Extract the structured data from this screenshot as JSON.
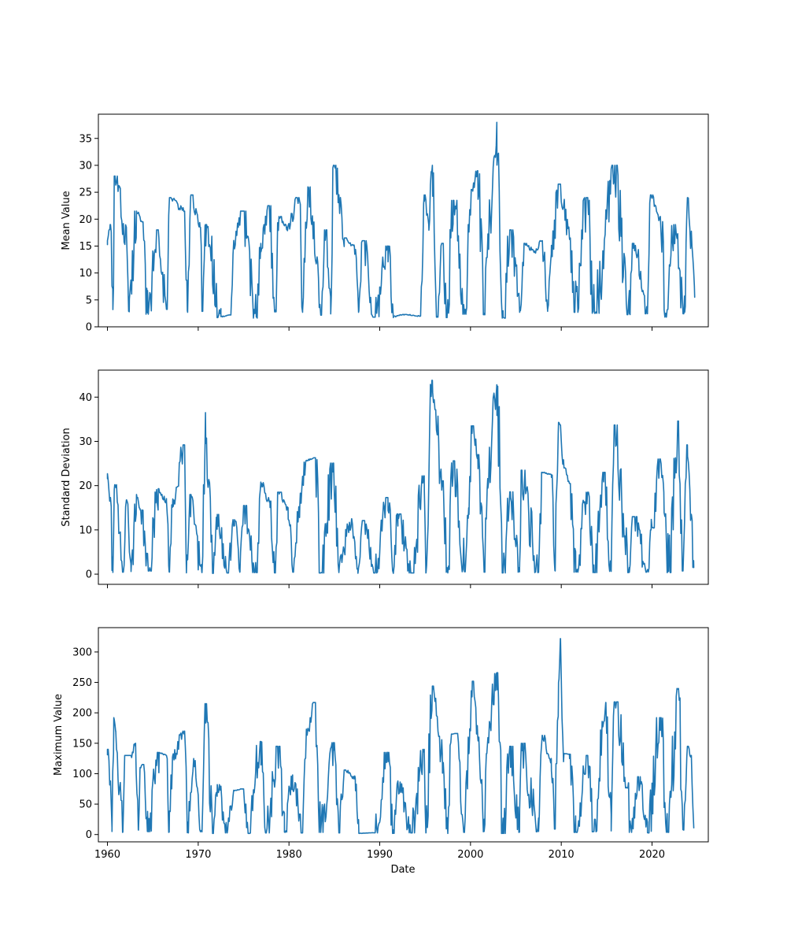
{
  "chart_data": [
    {
      "type": "line",
      "xlabel": "",
      "ylabel": "Mean Value",
      "xlim": [
        1959.0,
        2026.2
      ],
      "ylim": [
        0,
        39.5
      ],
      "yticks": [
        0,
        5,
        10,
        15,
        20,
        25,
        30,
        35
      ],
      "xticks": [
        1960,
        1970,
        1980,
        1990,
        2000,
        2010,
        2020
      ],
      "xtick_labels_visible": false,
      "color": "#1f77b4",
      "peaks": [
        [
          1960.0,
          16
        ],
        [
          1960.3,
          19
        ],
        [
          1960.8,
          28
        ],
        [
          1962.1,
          17
        ],
        [
          1963.2,
          21.5
        ],
        [
          1963.8,
          19.5
        ],
        [
          1965.6,
          18
        ],
        [
          1966.9,
          24
        ],
        [
          1968.5,
          21.5
        ],
        [
          1969.2,
          24.5
        ],
        [
          1970.2,
          18.5
        ],
        [
          1970.8,
          19
        ],
        [
          1973.9,
          15.5
        ],
        [
          1974.9,
          21.5
        ],
        [
          1976.9,
          15.5
        ],
        [
          1977.8,
          22.5
        ],
        [
          1978.9,
          20.5
        ],
        [
          1979.8,
          18.5
        ],
        [
          1981.1,
          24
        ],
        [
          1982.1,
          26
        ],
        [
          1983.1,
          13
        ],
        [
          1984.1,
          18
        ],
        [
          1984.9,
          30
        ],
        [
          1986.1,
          16.5
        ],
        [
          1987.2,
          15
        ],
        [
          1988.1,
          16
        ],
        [
          1990.9,
          15
        ],
        [
          1994.9,
          24.5
        ],
        [
          1995.4,
          19
        ],
        [
          1995.8,
          30
        ],
        [
          1996.9,
          15.5
        ],
        [
          1998.1,
          23.5
        ],
        [
          1999.8,
          19
        ],
        [
          2000.2,
          25.5
        ],
        [
          2000.8,
          29
        ],
        [
          2001.9,
          16
        ],
        [
          2002.9,
          38
        ],
        [
          2004.4,
          18
        ],
        [
          2005.9,
          15.5
        ],
        [
          2007.1,
          14
        ],
        [
          2007.9,
          16
        ],
        [
          2008.9,
          13.5
        ],
        [
          2009.8,
          26.5
        ],
        [
          2010.9,
          16.5
        ],
        [
          2012.9,
          24
        ],
        [
          2015.9,
          30
        ],
        [
          2017.9,
          15.5
        ],
        [
          2019.9,
          24.5
        ],
        [
          2020.9,
          20.5
        ],
        [
          2022.4,
          19
        ],
        [
          2023.9,
          24
        ],
        [
          2024.4,
          15
        ]
      ],
      "troughs": [
        [
          1960.6,
          3.2
        ],
        [
          1962.4,
          2.8
        ],
        [
          1964.4,
          2.6
        ],
        [
          1966.5,
          3.6
        ],
        [
          1968.8,
          3.0
        ],
        [
          1970.5,
          3.2
        ],
        [
          1972.5,
          1.9
        ],
        [
          1973.6,
          2.2
        ],
        [
          1976.4,
          1.8
        ],
        [
          1978.5,
          3.1
        ],
        [
          1981.5,
          3.0
        ],
        [
          1983.5,
          2.4
        ],
        [
          1984.6,
          2.4
        ],
        [
          1987.7,
          3.0
        ],
        [
          1989.5,
          2.0
        ],
        [
          1991.5,
          1.9
        ],
        [
          1992.7,
          2.3
        ],
        [
          1994.5,
          2.0
        ],
        [
          1996.4,
          2.0
        ],
        [
          1997.4,
          1.9
        ],
        [
          1999.5,
          2.6
        ],
        [
          2001.5,
          2.5
        ],
        [
          2003.6,
          1.8
        ],
        [
          2005.5,
          3.0
        ],
        [
          2008.5,
          3.2
        ],
        [
          2011.5,
          3.0
        ],
        [
          2013.5,
          2.8
        ],
        [
          2017.5,
          2.5
        ],
        [
          2019.5,
          2.7
        ],
        [
          2021.6,
          2.0
        ],
        [
          2023.6,
          2.7
        ],
        [
          2024.7,
          5.5
        ]
      ],
      "end_value": 5.5
    },
    {
      "type": "line",
      "xlabel": "",
      "ylabel": "Standard Deviation",
      "xlim": [
        1959.0,
        2026.2
      ],
      "ylim": [
        -2.3,
        46.1
      ],
      "yticks": [
        0,
        10,
        20,
        30,
        40
      ],
      "xticks": [
        1960,
        1970,
        1980,
        1990,
        2000,
        2010,
        2020
      ],
      "xtick_labels_visible": false,
      "color": "#1f77b4",
      "peaks": [
        [
          1960.0,
          22.7
        ],
        [
          1960.3,
          17.3
        ],
        [
          1960.8,
          20.2
        ],
        [
          1962.1,
          16.8
        ],
        [
          1963.2,
          18.0
        ],
        [
          1963.6,
          14.5
        ],
        [
          1965.6,
          19.3
        ],
        [
          1966.5,
          16.5
        ],
        [
          1967.2,
          17.0
        ],
        [
          1968.5,
          29.2
        ],
        [
          1969.2,
          18.0
        ],
        [
          1970.8,
          36.5
        ],
        [
          1972.1,
          13.5
        ],
        [
          1974.0,
          12.3
        ],
        [
          1975.0,
          15.5
        ],
        [
          1976.9,
          20.8
        ],
        [
          1977.9,
          16.5
        ],
        [
          1978.9,
          18.5
        ],
        [
          1979.9,
          15.0
        ],
        [
          1981.2,
          16.0
        ],
        [
          1981.9,
          25.7
        ],
        [
          1982.9,
          26.3
        ],
        [
          1984.9,
          25.1
        ],
        [
          1986.9,
          12.5
        ],
        [
          1988.1,
          12.1
        ],
        [
          1990.9,
          17.3
        ],
        [
          1992.0,
          13.6
        ],
        [
          1994.9,
          22.2
        ],
        [
          1995.8,
          43.8
        ],
        [
          1996.9,
          21.1
        ],
        [
          1998.1,
          25.6
        ],
        [
          1999.8,
          15.0
        ],
        [
          2000.2,
          33.5
        ],
        [
          2000.8,
          27.0
        ],
        [
          2001.9,
          21.6
        ],
        [
          2002.9,
          42.8
        ],
        [
          2004.4,
          18.6
        ],
        [
          2005.6,
          23.5
        ],
        [
          2007.9,
          23.0
        ],
        [
          2008.9,
          22.5
        ],
        [
          2009.7,
          34.3
        ],
        [
          2009.9,
          33.7
        ],
        [
          2010.3,
          24.0
        ],
        [
          2010.9,
          20.5
        ],
        [
          2012.9,
          18.5
        ],
        [
          2014.7,
          23.0
        ],
        [
          2015.9,
          33.7
        ],
        [
          2017.9,
          13.0
        ],
        [
          2019.9,
          10.0
        ],
        [
          2020.9,
          26.0
        ],
        [
          2021.3,
          18.5
        ],
        [
          2022.9,
          34.6
        ],
        [
          2023.9,
          29.2
        ],
        [
          2024.3,
          13.5
        ]
      ],
      "troughs": [
        [
          1960.6,
          0.4
        ],
        [
          1961.7,
          0.5
        ],
        [
          1962.6,
          0.6
        ],
        [
          1964.5,
          0.8
        ],
        [
          1966.8,
          0.5
        ],
        [
          1968.7,
          0.3
        ],
        [
          1970.4,
          0.4
        ],
        [
          1971.6,
          0.2
        ],
        [
          1973.2,
          0.3
        ],
        [
          1974.6,
          0.5
        ],
        [
          1976.4,
          0.4
        ],
        [
          1978.4,
          0.3
        ],
        [
          1980.5,
          0.5
        ],
        [
          1983.5,
          0.3
        ],
        [
          1985.5,
          0.4
        ],
        [
          1987.6,
          0.2
        ],
        [
          1989.5,
          0.3
        ],
        [
          1991.5,
          0.2
        ],
        [
          1993.5,
          0.3
        ],
        [
          1995.1,
          0.3
        ],
        [
          1997.5,
          0.3
        ],
        [
          1999.4,
          0.6
        ],
        [
          2001.5,
          0.5
        ],
        [
          2003.6,
          0.3
        ],
        [
          2005.4,
          0.5
        ],
        [
          2007.5,
          0.4
        ],
        [
          2009.3,
          0.8
        ],
        [
          2011.6,
          0.5
        ],
        [
          2013.6,
          0.4
        ],
        [
          2015.5,
          0.7
        ],
        [
          2017.5,
          0.4
        ],
        [
          2019.6,
          0.5
        ],
        [
          2021.7,
          0.4
        ],
        [
          2023.4,
          0.8
        ],
        [
          2024.6,
          1.5
        ]
      ],
      "end_value": 1.5
    },
    {
      "type": "line",
      "xlabel": "Date",
      "ylabel": "Maximum Value",
      "xlim": [
        1959.0,
        2026.2
      ],
      "ylim": [
        -12,
        340
      ],
      "yticks": [
        0,
        50,
        100,
        150,
        200,
        250,
        300
      ],
      "xticks": [
        1960,
        1970,
        1980,
        1990,
        2000,
        2010,
        2020
      ],
      "xtick_labels_visible": true,
      "color": "#1f77b4",
      "peaks": [
        [
          1960.0,
          140
        ],
        [
          1960.3,
          88
        ],
        [
          1960.7,
          192
        ],
        [
          1960.9,
          170
        ],
        [
          1961.9,
          130
        ],
        [
          1962.6,
          130
        ],
        [
          1963.1,
          150
        ],
        [
          1963.6,
          110
        ],
        [
          1963.9,
          115
        ],
        [
          1965.7,
          135
        ],
        [
          1966.5,
          130
        ],
        [
          1967.2,
          130
        ],
        [
          1968.5,
          170
        ],
        [
          1969.5,
          125
        ],
        [
          1970.8,
          215
        ],
        [
          1972.1,
          82
        ],
        [
          1973.9,
          72
        ],
        [
          1974.9,
          75
        ],
        [
          1976.9,
          153
        ],
        [
          1978.9,
          145
        ],
        [
          1980.4,
          98
        ],
        [
          1981.9,
          163
        ],
        [
          1982.9,
          217
        ],
        [
          1984.9,
          151
        ],
        [
          1986.1,
          106
        ],
        [
          1987.3,
          93
        ],
        [
          1990.9,
          135
        ],
        [
          1992.0,
          88
        ],
        [
          1994.9,
          140
        ],
        [
          1995.8,
          244
        ],
        [
          1996.9,
          130
        ],
        [
          1997.9,
          165
        ],
        [
          1998.4,
          166
        ],
        [
          1999.9,
          160
        ],
        [
          2000.2,
          252
        ],
        [
          2000.8,
          160
        ],
        [
          2001.8,
          133
        ],
        [
          2002.9,
          266
        ],
        [
          2004.4,
          145
        ],
        [
          2005.6,
          150
        ],
        [
          2007.9,
          163
        ],
        [
          2008.9,
          125
        ],
        [
          2009.7,
          250
        ],
        [
          2009.9,
          322
        ],
        [
          2010.3,
          133
        ],
        [
          2010.9,
          132
        ],
        [
          2012.9,
          130
        ],
        [
          2014.7,
          186
        ],
        [
          2014.9,
          217
        ],
        [
          2015.9,
          218
        ],
        [
          2017.4,
          85
        ],
        [
          2018.7,
          95
        ],
        [
          2020.9,
          192
        ],
        [
          2022.9,
          240
        ],
        [
          2023.9,
          145
        ],
        [
          2024.3,
          130
        ]
      ],
      "troughs": [
        [
          1960.5,
          5
        ],
        [
          1961.7,
          4
        ],
        [
          1963.4,
          8
        ],
        [
          1964.4,
          5
        ],
        [
          1966.8,
          4
        ],
        [
          1968.8,
          3
        ],
        [
          1970.4,
          5
        ],
        [
          1971.6,
          2
        ],
        [
          1973.2,
          3
        ],
        [
          1975.6,
          2
        ],
        [
          1977.5,
          3
        ],
        [
          1979.5,
          4
        ],
        [
          1981.5,
          3
        ],
        [
          1983.5,
          4
        ],
        [
          1985.5,
          3
        ],
        [
          1987.7,
          2
        ],
        [
          1989.5,
          3
        ],
        [
          1991.5,
          2
        ],
        [
          1993.5,
          3
        ],
        [
          1995.1,
          3
        ],
        [
          1997.5,
          2
        ],
        [
          1999.3,
          4
        ],
        [
          2001.5,
          5
        ],
        [
          2003.6,
          2
        ],
        [
          2005.4,
          4
        ],
        [
          2007.5,
          5
        ],
        [
          2009.3,
          10
        ],
        [
          2011.6,
          4
        ],
        [
          2013.6,
          5
        ],
        [
          2015.5,
          6
        ],
        [
          2017.5,
          4
        ],
        [
          2019.5,
          3
        ],
        [
          2021.7,
          4
        ],
        [
          2023.4,
          8
        ],
        [
          2024.6,
          11
        ]
      ],
      "end_value": 11
    }
  ]
}
